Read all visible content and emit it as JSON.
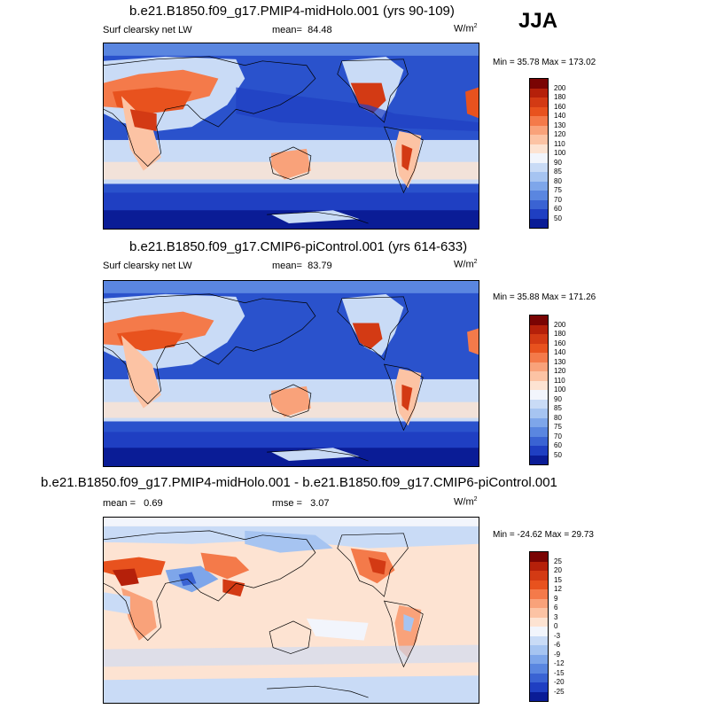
{
  "season": "JJA",
  "units_label": "W/m",
  "units_exp": "2",
  "panels": [
    {
      "title": "b.e21.B1850.f09_g17.PMIP4-midHolo.001 (yrs 90-109)",
      "variable": "Surf clearsky net LW",
      "mean_label": "mean=",
      "mean": "84.48",
      "minmax": "Min =  35.78 Max = 173.02"
    },
    {
      "title": "b.e21.B1850.f09_g17.CMIP6-piControl.001 (yrs 614-633)",
      "variable": "Surf clearsky net LW",
      "mean_label": "mean=",
      "mean": "83.79",
      "minmax": "Min =  35.88 Max = 171.26"
    },
    {
      "title": "b.e21.B1850.f09_g17.PMIP4-midHolo.001 - b.e21.B1850.f09_g17.CMIP6-piControl.001",
      "mean_label": "mean =",
      "mean": "0.69",
      "rmse_label": "rmse =",
      "rmse": "3.07",
      "minmax": "Min = -24.62 Max =  29.73"
    }
  ],
  "colorbar_abs": {
    "labels": [
      "200",
      "180",
      "160",
      "140",
      "130",
      "120",
      "110",
      "100",
      "90",
      "85",
      "80",
      "75",
      "70",
      "60",
      "50"
    ],
    "colors": [
      "#7a0403",
      "#b5200a",
      "#d33a14",
      "#e8521e",
      "#f47a4a",
      "#f9a27a",
      "#fcc3a4",
      "#fde3d2",
      "#f2f5fc",
      "#c9dbf6",
      "#a6c4f1",
      "#7ea6ea",
      "#5a86e0",
      "#3a63d3",
      "#1f3fc2",
      "#0a1c96"
    ]
  },
  "colorbar_diff": {
    "labels": [
      "25",
      "20",
      "15",
      "12",
      "9",
      "6",
      "3",
      "0",
      "-3",
      "-6",
      "-9",
      "-12",
      "-15",
      "-20",
      "-25"
    ],
    "colors": [
      "#7a0403",
      "#b5200a",
      "#d33a14",
      "#e8521e",
      "#f47a4a",
      "#f9a27a",
      "#fcc3a4",
      "#fde3d2",
      "#f2f5fc",
      "#c9dbf6",
      "#a6c4f1",
      "#7ea6ea",
      "#5a86e0",
      "#3a63d3",
      "#1f3fc2",
      "#0a1c96"
    ]
  }
}
